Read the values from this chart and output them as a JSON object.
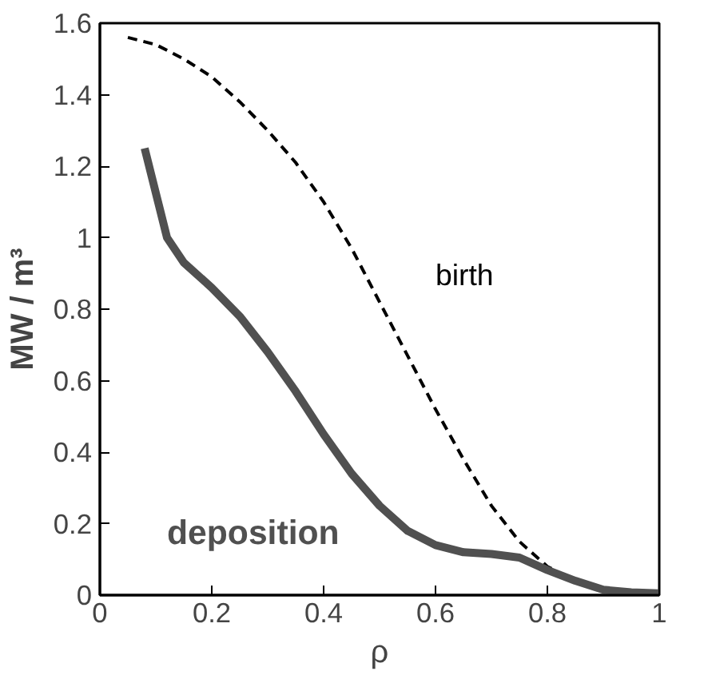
{
  "chart_data": {
    "type": "line",
    "xlabel": "ρ",
    "ylabel": "MW / m³",
    "xlim": [
      0,
      1
    ],
    "ylim": [
      0,
      1.6
    ],
    "xticks": [
      0,
      0.2,
      0.4,
      0.6,
      0.8,
      1
    ],
    "yticks": [
      0,
      0.2,
      0.4,
      0.6,
      0.8,
      1,
      1.2,
      1.4,
      1.6
    ],
    "grid": false,
    "legend": false,
    "series": [
      {
        "name": "birth",
        "color": "#000000",
        "line_style": "dashed",
        "x": [
          0.05,
          0.1,
          0.15,
          0.2,
          0.25,
          0.3,
          0.35,
          0.4,
          0.45,
          0.5,
          0.55,
          0.6,
          0.65,
          0.7,
          0.75,
          0.8,
          0.85,
          0.9,
          0.95,
          1
        ],
        "values": [
          1.56,
          1.54,
          1.5,
          1.45,
          1.38,
          1.3,
          1.21,
          1.1,
          0.97,
          0.82,
          0.67,
          0.52,
          0.38,
          0.25,
          0.15,
          0.08,
          0.04,
          0.02,
          0.01,
          0.005
        ]
      },
      {
        "name": "deposition",
        "color": "#505050",
        "line_style": "solid",
        "x": [
          0.08,
          0.12,
          0.15,
          0.2,
          0.25,
          0.3,
          0.35,
          0.4,
          0.45,
          0.5,
          0.55,
          0.6,
          0.65,
          0.7,
          0.75,
          0.8,
          0.85,
          0.9,
          0.95,
          1
        ],
        "values": [
          1.25,
          1.0,
          0.93,
          0.86,
          0.78,
          0.68,
          0.57,
          0.45,
          0.34,
          0.25,
          0.18,
          0.14,
          0.12,
          0.115,
          0.105,
          0.07,
          0.04,
          0.015,
          0.008,
          0.005
        ]
      }
    ]
  }
}
